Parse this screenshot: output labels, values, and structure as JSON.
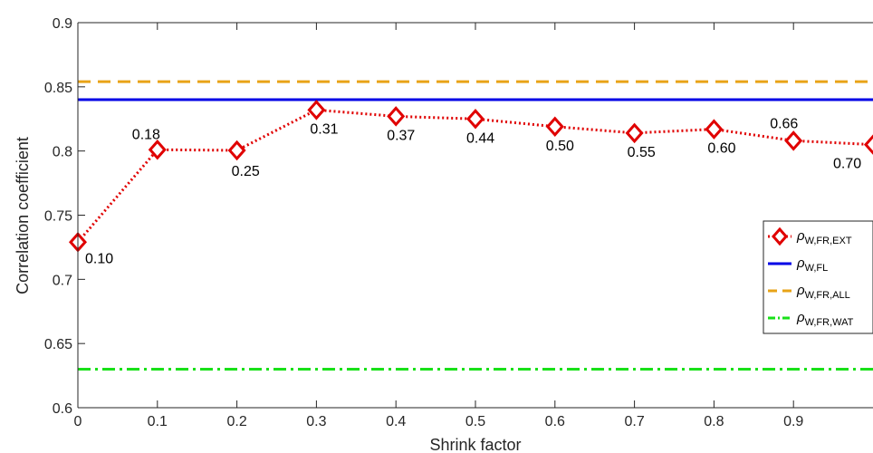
{
  "chart_data": {
    "type": "line",
    "xlabel": "Shrink factor",
    "ylabel": "Correlation coefficient",
    "xlim": [
      0,
      1
    ],
    "ylim": [
      0.6,
      0.9
    ],
    "xticks": [
      "0",
      "0.1",
      "0.2",
      "0.3",
      "0.4",
      "0.5",
      "0.6",
      "0.7",
      "0.8",
      "0.9"
    ],
    "yticks": [
      "0.6",
      "0.65",
      "0.7",
      "0.75",
      "0.8",
      "0.85",
      "0.9"
    ],
    "grid": false,
    "legend_position": "right",
    "series": [
      {
        "name": "ρW,FR,EXT",
        "legend_main": "ρ",
        "legend_sub": "W,FR,EXT",
        "style": "dotted-diamond",
        "color": "#e00000",
        "x": [
          0,
          0.1,
          0.2,
          0.3,
          0.4,
          0.5,
          0.6,
          0.7,
          0.8,
          0.9,
          1.0
        ],
        "y": [
          0.729,
          0.801,
          0.8005,
          0.832,
          0.827,
          0.825,
          0.819,
          0.814,
          0.817,
          0.808,
          0.805
        ],
        "point_labels": [
          "0.10",
          "0.18",
          "0.25",
          "0.31",
          "0.37",
          "0.44",
          "0.50",
          "0.55",
          "0.60",
          "0.66",
          "0.70"
        ]
      },
      {
        "name": "ρW,FL",
        "legend_main": "ρ",
        "legend_sub": "W,FL",
        "style": "solid",
        "color": "#0000e6",
        "value": 0.84
      },
      {
        "name": "ρW,FR,ALL",
        "legend_main": "ρ",
        "legend_sub": "W,FR,ALL",
        "style": "dashed",
        "color": "#e8a317",
        "value": 0.854
      },
      {
        "name": "ρW,FR,WAT",
        "legend_main": "ρ",
        "legend_sub": "W,FR,WAT",
        "style": "dashdot",
        "color": "#19e019",
        "value": 0.63
      }
    ]
  }
}
